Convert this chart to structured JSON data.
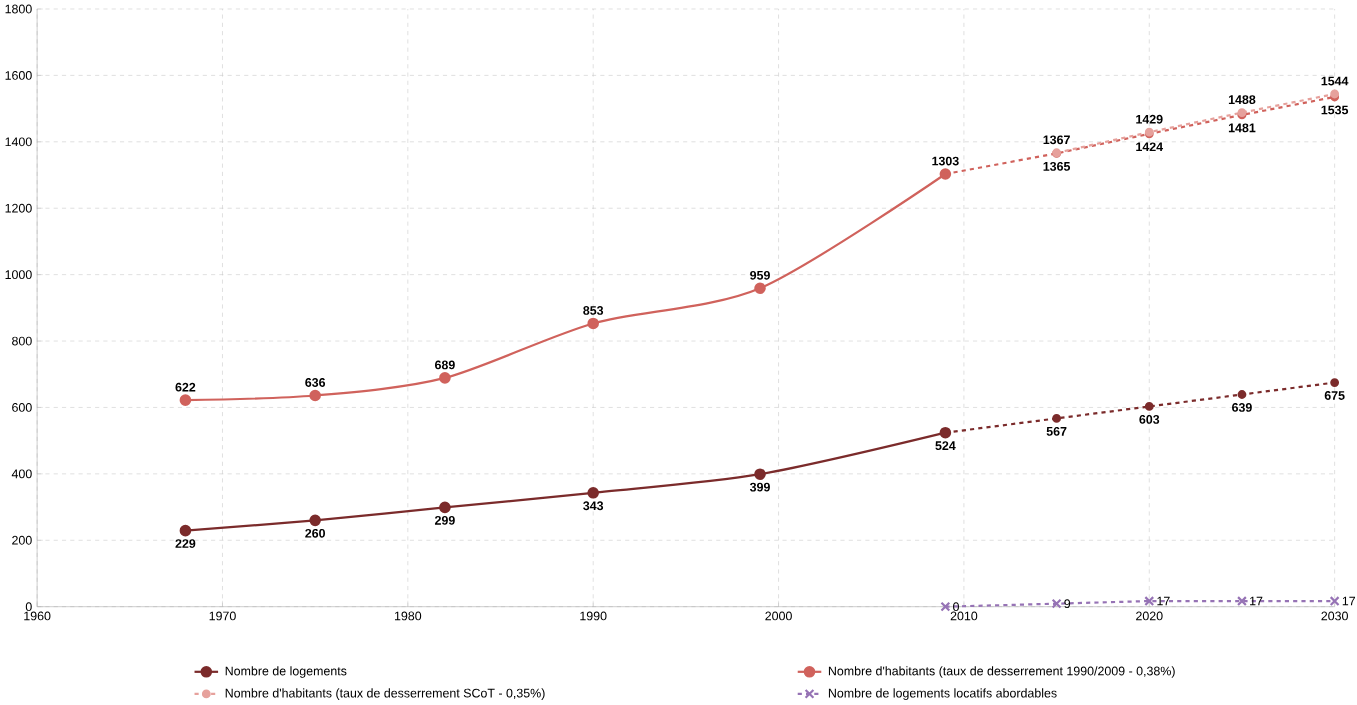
{
  "chart_data": {
    "type": "line",
    "xlim": [
      1960,
      2030
    ],
    "ylim": [
      0,
      1800
    ],
    "xticks": [
      1960,
      1970,
      1980,
      1990,
      2000,
      2010,
      2020,
      2030
    ],
    "yticks": [
      0,
      200,
      400,
      600,
      800,
      1000,
      1200,
      1400,
      1600,
      1800
    ],
    "grid": true,
    "legend": "bottom",
    "data_labels": true,
    "marker": "circle",
    "series": [
      {
        "name": "Nombre de logements",
        "color": "#7b2b2b",
        "line_style": "solid",
        "x": [
          1968,
          1975,
          1982,
          1990,
          1999,
          2009
        ],
        "values": [
          229,
          260,
          299,
          343,
          399,
          524
        ]
      },
      {
        "color": "#7b2b2b",
        "line_style": "dashed",
        "x": [
          2009,
          2015,
          2020,
          2025,
          2030
        ],
        "values": [
          524,
          567,
          603,
          639,
          675
        ],
        "value_labels": [
          null,
          "567",
          "603",
          "639",
          "675"
        ]
      },
      {
        "name": "Nombre d'habitants (taux de desserrement 1990/2009 - 0,38%)",
        "color": "#d0625c",
        "line_style": "solid",
        "x": [
          1968,
          1975,
          1982,
          1990,
          1999,
          2009
        ],
        "values": [
          622,
          636,
          689,
          853,
          959,
          1303
        ]
      },
      {
        "color": "#d0625c",
        "line_style": "dashed",
        "x": [
          2009,
          2015,
          2020,
          2025,
          2030
        ],
        "values": [
          1303,
          1365,
          1424,
          1481,
          1535
        ],
        "value_labels": [
          null,
          "1365",
          "1424",
          "1481",
          "1535"
        ]
      },
      {
        "name": "Nombre d'habitants (taux de desserrement SCoT - 0,35%)",
        "color": "#e6a19c",
        "line_style": "dashed",
        "x": [
          2015,
          2020,
          2025,
          2030
        ],
        "values": [
          1367,
          1429,
          1488,
          1544
        ]
      },
      {
        "name": "Nombre de logements locatifs abordables",
        "color": "#9673b5",
        "line_style": "dashed",
        "marker": "cross",
        "x": [
          2009,
          2015,
          2020,
          2025,
          2030
        ],
        "values": [
          0,
          9,
          17,
          17,
          17
        ]
      }
    ]
  }
}
